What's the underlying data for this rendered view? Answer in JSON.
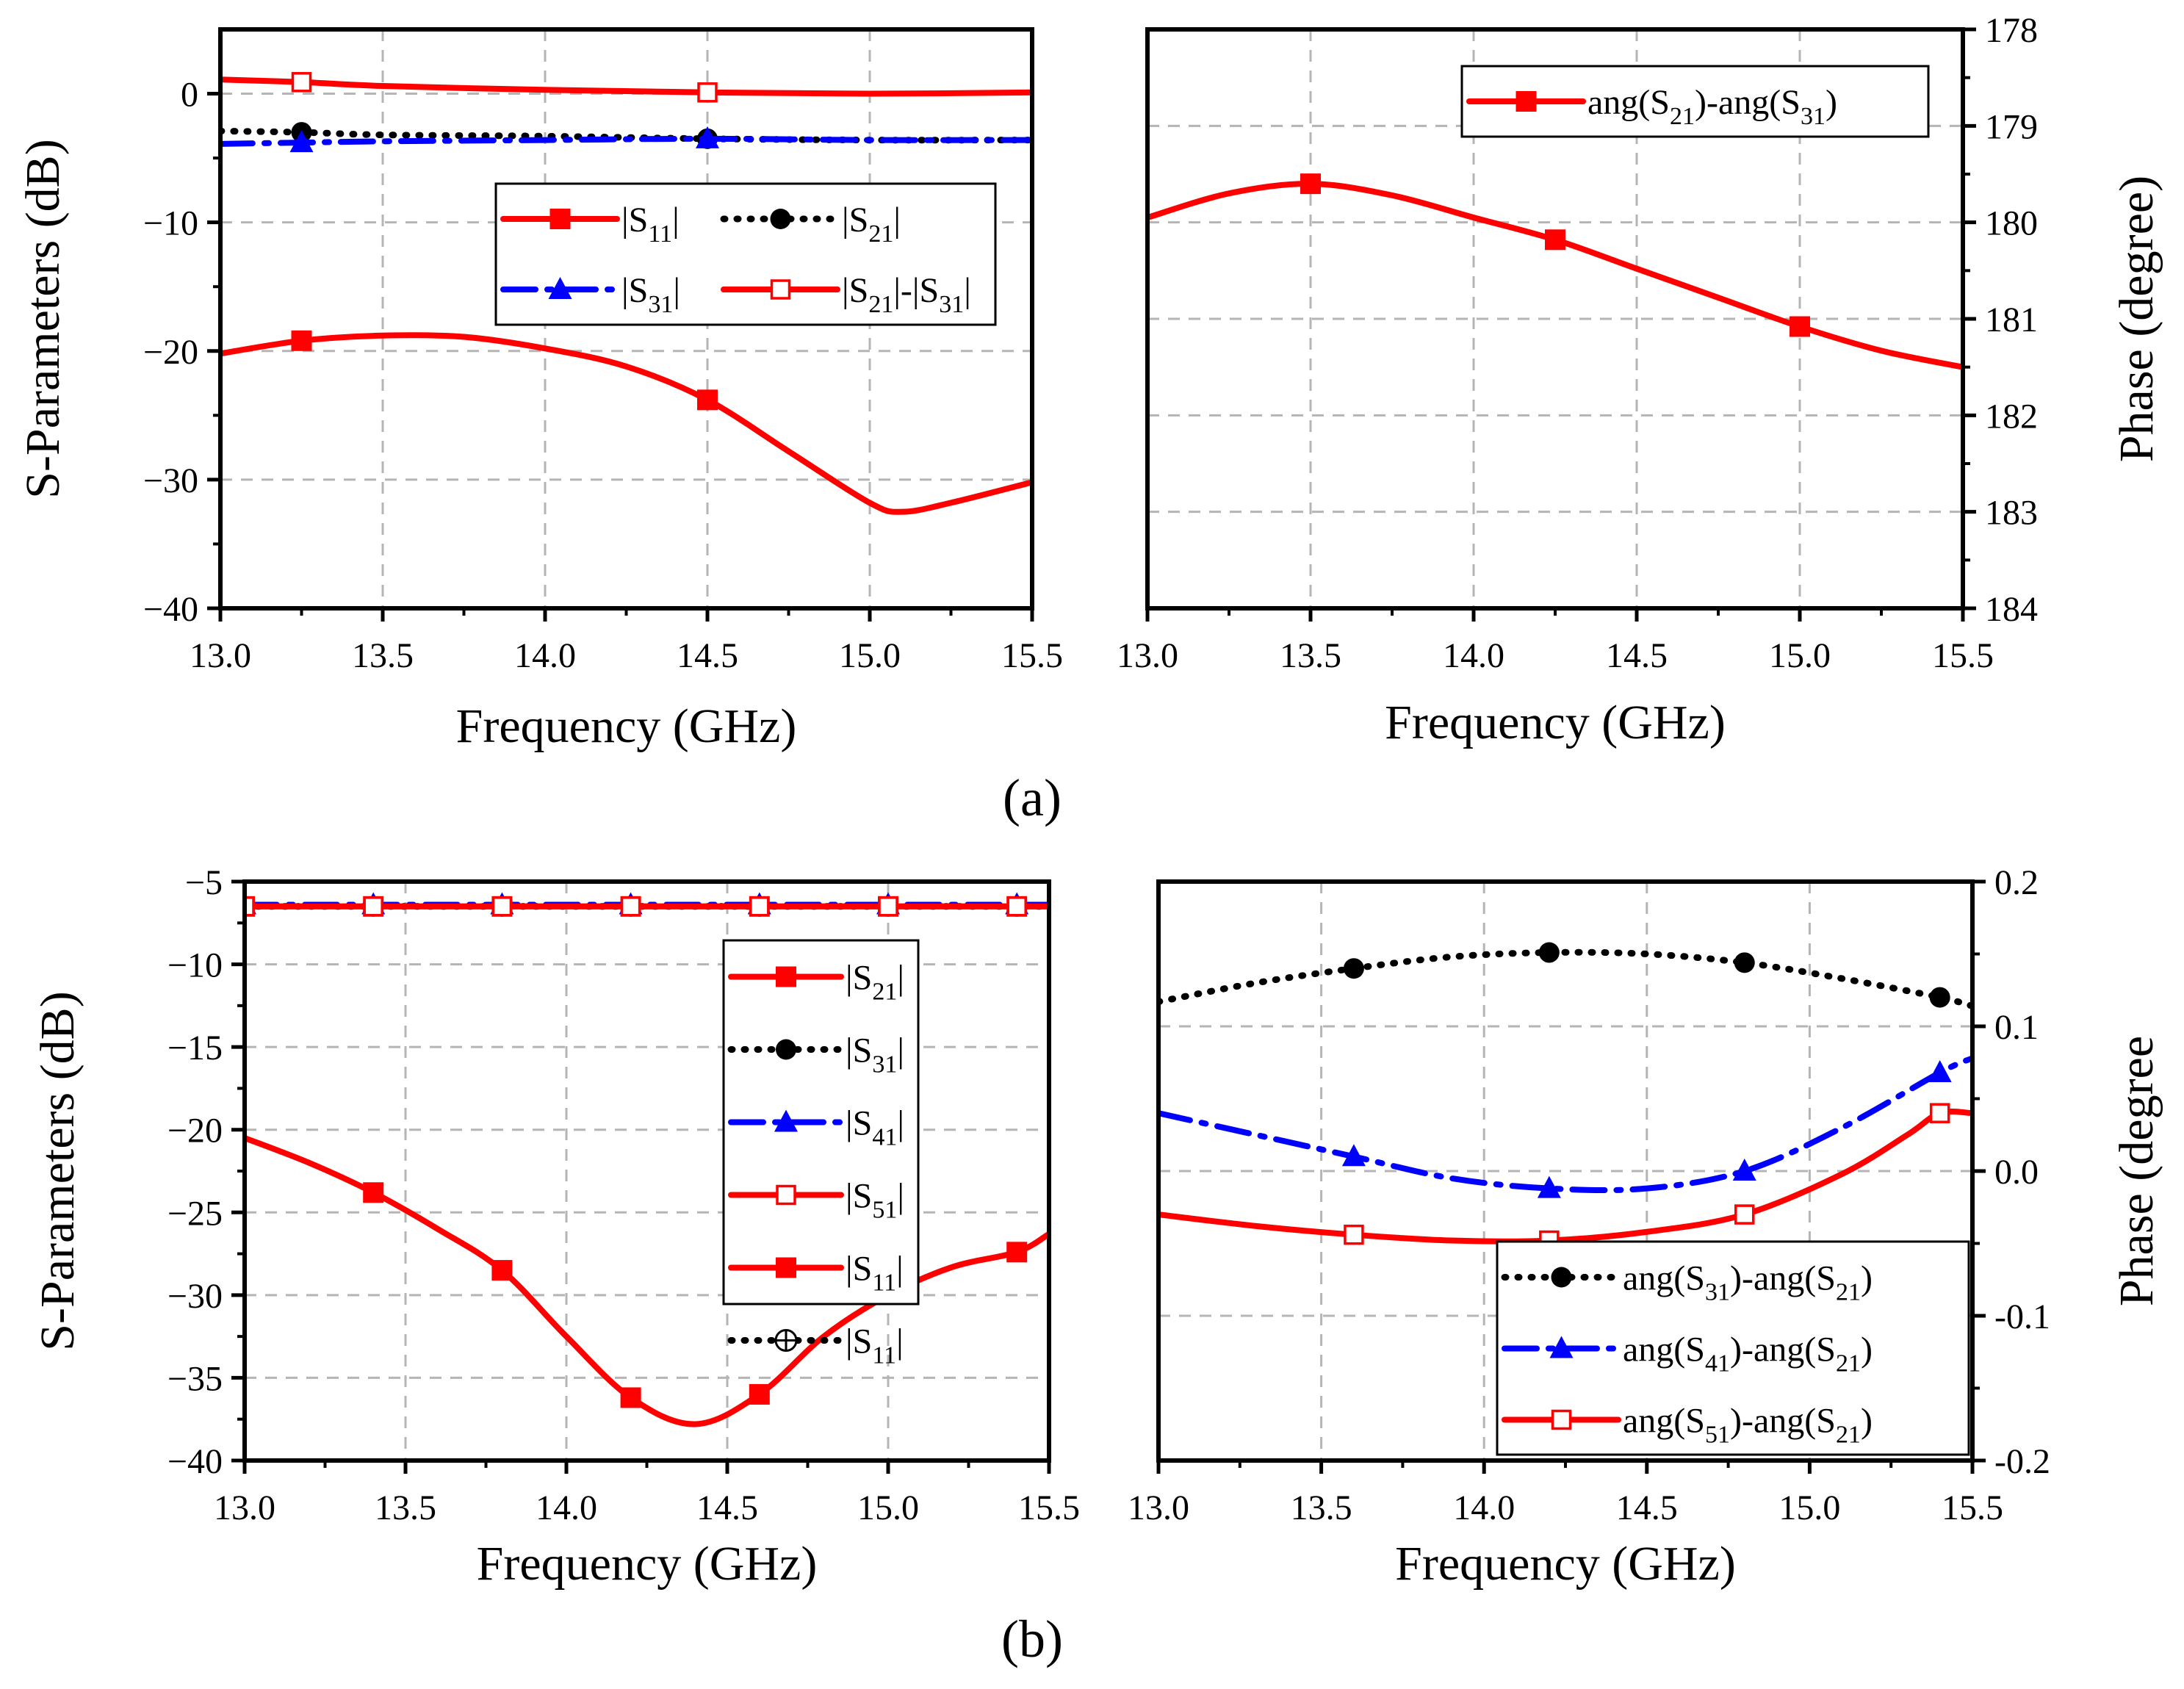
{
  "captions": {
    "a": "(a)",
    "b": "(b)"
  },
  "colors": {
    "red": "#ff0000",
    "black": "#000000",
    "blue": "#0000ff"
  },
  "chart_data": [
    {
      "id": "a-left",
      "type": "line",
      "xlabel": "Frequency (GHz)",
      "ylabel": "S-Parameters (dB)",
      "xlim": [
        13.0,
        15.5
      ],
      "ylim": [
        -40,
        5
      ],
      "xticks": [
        13.0,
        13.5,
        14.0,
        14.5,
        15.0,
        15.5
      ],
      "yticks": [
        0,
        -10,
        -20,
        -30,
        -40
      ],
      "xtick_labels": [
        "13.0",
        "13.5",
        "14.0",
        "14.5",
        "15.0",
        "15.5"
      ],
      "ytick_labels": [
        "0",
        "−10",
        "−20",
        "−30",
        "−40"
      ],
      "legend": {
        "placement": "center",
        "columns": 2
      },
      "series": [
        {
          "name": "|S11|",
          "label_main": "|S",
          "label_sub": "11",
          "label_tail": "|",
          "style": "solid",
          "color": "#ff0000",
          "marker": "square-filled",
          "x": [
            13.0,
            13.25,
            13.5,
            13.75,
            14.0,
            14.25,
            14.5,
            14.75,
            15.0,
            15.1,
            15.25,
            15.5
          ],
          "y": [
            -20.2,
            -19.2,
            -18.8,
            -18.9,
            -19.8,
            -21.2,
            -23.8,
            -27.8,
            -31.8,
            -32.5,
            -31.8,
            -30.2
          ],
          "marker_x": [
            13.25,
            14.5
          ]
        },
        {
          "name": "|S21|",
          "label_main": "|S",
          "label_sub": "21",
          "label_tail": "|",
          "style": "dotted",
          "color": "#000000",
          "marker": "circle-filled",
          "x": [
            13.0,
            13.25,
            13.5,
            14.0,
            14.5,
            15.0,
            15.5
          ],
          "y": [
            -2.9,
            -3.0,
            -3.2,
            -3.3,
            -3.5,
            -3.6,
            -3.6
          ],
          "marker_x": [
            13.25,
            14.5
          ]
        },
        {
          "name": "|S31|",
          "label_main": "|S",
          "label_sub": "31",
          "label_tail": "|",
          "style": "dashdot",
          "color": "#0000ff",
          "marker": "triangle-filled",
          "x": [
            13.0,
            13.25,
            13.5,
            14.0,
            14.5,
            15.0,
            15.5
          ],
          "y": [
            -3.9,
            -3.8,
            -3.7,
            -3.6,
            -3.5,
            -3.6,
            -3.6
          ],
          "marker_x": [
            13.25,
            14.5
          ]
        },
        {
          "name": "|S21|-|S31|",
          "label_main": "|S",
          "label_sub": "21",
          "label_tail": "|-|S",
          "label_sub2": "31",
          "label_tail2": "|",
          "style": "solid",
          "color": "#ff0000",
          "marker": "square-open",
          "x": [
            13.0,
            13.25,
            13.5,
            14.0,
            14.5,
            15.0,
            15.5
          ],
          "y": [
            1.1,
            0.9,
            0.6,
            0.3,
            0.1,
            0.0,
            0.1
          ],
          "marker_x": [
            13.25,
            14.5
          ]
        }
      ]
    },
    {
      "id": "a-right",
      "type": "line",
      "xlabel": "Frequency (GHz)",
      "ylabel": "Phase (degree)",
      "xlim": [
        13.0,
        15.5
      ],
      "ylim": [
        178,
        184
      ],
      "y_inverted": true,
      "y_axis_side": "right",
      "xticks": [
        13.0,
        13.5,
        14.0,
        14.5,
        15.0,
        15.5
      ],
      "yticks": [
        178,
        179,
        180,
        181,
        182,
        183,
        184
      ],
      "xtick_labels": [
        "13.0",
        "13.5",
        "14.0",
        "14.5",
        "15.0",
        "15.5"
      ],
      "ytick_labels": [
        "178",
        "179",
        "180",
        "181",
        "182",
        "183",
        "184"
      ],
      "legend": {
        "placement": "top-right",
        "columns": 1
      },
      "series": [
        {
          "name": "ang(S21)-ang(S31)",
          "label_main": "ang(S",
          "label_sub": "21",
          "label_tail": ")-ang(S",
          "label_sub2": "31",
          "label_tail2": ")",
          "style": "solid",
          "color": "#ff0000",
          "marker": "square-filled",
          "x": [
            13.0,
            13.25,
            13.5,
            13.75,
            14.0,
            14.25,
            14.5,
            14.75,
            15.0,
            15.25,
            15.5
          ],
          "y": [
            179.95,
            179.7,
            179.6,
            179.72,
            179.95,
            180.18,
            180.48,
            180.78,
            181.08,
            181.33,
            181.5
          ],
          "marker_x": [
            13.5,
            14.25,
            15.0
          ]
        }
      ]
    },
    {
      "id": "b-left",
      "type": "line",
      "xlabel": "Frequency (GHz)",
      "ylabel": "S-Parameters (dB)",
      "xlim": [
        13.0,
        15.5
      ],
      "ylim": [
        -40,
        -5
      ],
      "xticks": [
        13.0,
        13.5,
        14.0,
        14.5,
        15.0,
        15.5
      ],
      "yticks": [
        -5,
        -10,
        -15,
        -20,
        -25,
        -30,
        -35,
        -40
      ],
      "xtick_labels": [
        "13.0",
        "13.5",
        "14.0",
        "14.5",
        "15.0",
        "15.5"
      ],
      "ytick_labels": [
        "−5",
        "−10",
        "−15",
        "−20",
        "−25",
        "−30",
        "−35",
        "−40"
      ],
      "legend": {
        "placement": "upper-center",
        "columns": 1
      },
      "series": [
        {
          "name": "|S21|",
          "label_main": "|S",
          "label_sub": "21",
          "label_tail": "|",
          "style": "solid",
          "color": "#ff0000",
          "marker": "square-filled",
          "x": [
            13.0,
            15.5
          ],
          "y": [
            -6.5,
            -6.5
          ],
          "marker_x": [
            13.0,
            13.4,
            13.8,
            14.2,
            14.6,
            15.0,
            15.4
          ]
        },
        {
          "name": "|S31|",
          "label_main": "|S",
          "label_sub": "31",
          "label_tail": "|",
          "style": "dotted",
          "color": "#000000",
          "marker": "circle-filled",
          "x": [
            13.0,
            15.5
          ],
          "y": [
            -6.5,
            -6.5
          ],
          "marker_x": [
            13.0,
            13.4,
            13.8,
            14.2,
            14.6,
            15.0,
            15.4
          ]
        },
        {
          "name": "|S41|",
          "label_main": "|S",
          "label_sub": "41",
          "label_tail": "|",
          "style": "dashdot",
          "color": "#0000ff",
          "marker": "triangle-filled",
          "x": [
            13.0,
            15.5
          ],
          "y": [
            -6.4,
            -6.4
          ],
          "marker_x": [
            13.0,
            13.4,
            13.8,
            14.2,
            14.6,
            15.0,
            15.4
          ]
        },
        {
          "name": "|S51|",
          "label_main": "|S",
          "label_sub": "51",
          "label_tail": "|",
          "style": "solid",
          "color": "#ff0000",
          "marker": "square-open",
          "x": [
            13.0,
            15.5
          ],
          "y": [
            -6.5,
            -6.5
          ],
          "marker_x": [
            13.0,
            13.4,
            13.8,
            14.2,
            14.6,
            15.0,
            15.4
          ]
        },
        {
          "name": "|S11|",
          "label_main": "|S",
          "label_sub": "11",
          "label_tail": "|",
          "style": "solid",
          "color": "#ff0000",
          "marker": "square-filled",
          "x": [
            13.0,
            13.2,
            13.4,
            13.6,
            13.8,
            14.0,
            14.2,
            14.4,
            14.6,
            14.8,
            15.0,
            15.2,
            15.4,
            15.5
          ],
          "y": [
            -20.5,
            -22.0,
            -23.8,
            -26.0,
            -28.5,
            -32.5,
            -36.2,
            -37.8,
            -36.0,
            -32.5,
            -30.0,
            -28.3,
            -27.4,
            -26.3
          ],
          "marker_x": [
            13.4,
            13.8,
            14.2,
            14.6,
            15.4
          ]
        },
        {
          "name": "|S11| (legend)",
          "label_main": "|S",
          "label_sub": "11",
          "label_tail": "|",
          "style": "dotted",
          "color": "#000000",
          "marker": "circle-open-cross",
          "legend_only": true,
          "x": [],
          "y": [],
          "marker_x": []
        }
      ]
    },
    {
      "id": "b-right",
      "type": "line",
      "xlabel": "Frequency (GHz)",
      "ylabel": "Phase (degree",
      "xlim": [
        13.0,
        15.5
      ],
      "ylim": [
        -0.2,
        0.2
      ],
      "y_axis_side": "right",
      "xticks": [
        13.0,
        13.5,
        14.0,
        14.5,
        15.0,
        15.5
      ],
      "yticks": [
        0.2,
        0.1,
        0.0,
        -0.1,
        -0.2
      ],
      "xtick_labels": [
        "13.0",
        "13.5",
        "14.0",
        "14.5",
        "15.0",
        "15.5"
      ],
      "ytick_labels": [
        "0.2",
        "0.1",
        "0.0",
        "-0.1",
        "-0.2"
      ],
      "legend": {
        "placement": "bottom-right",
        "columns": 1
      },
      "series": [
        {
          "name": "ang(S31)-ang(S21)",
          "label_main": "ang(S",
          "label_sub": "31",
          "label_tail": ")-ang(S",
          "label_sub2": "21",
          "label_tail2": ")",
          "style": "dotted",
          "color": "#000000",
          "marker": "circle-filled",
          "x": [
            13.0,
            13.3,
            13.6,
            13.9,
            14.2,
            14.5,
            14.8,
            15.1,
            15.4,
            15.5
          ],
          "y": [
            0.117,
            0.13,
            0.14,
            0.148,
            0.151,
            0.15,
            0.144,
            0.133,
            0.12,
            0.114
          ],
          "marker_x": [
            13.6,
            14.2,
            14.8,
            15.4
          ]
        },
        {
          "name": "ang(S41)-ang(S21)",
          "label_main": "ang(S",
          "label_sub": "41",
          "label_tail": ")-ang(S",
          "label_sub2": "21",
          "label_tail2": ")",
          "style": "dashdot",
          "color": "#0000ff",
          "marker": "triangle-filled",
          "x": [
            13.0,
            13.3,
            13.6,
            13.9,
            14.2,
            14.5,
            14.8,
            15.1,
            15.4,
            15.5
          ],
          "y": [
            0.04,
            0.025,
            0.01,
            -0.005,
            -0.012,
            -0.012,
            0.0,
            0.03,
            0.068,
            0.078
          ],
          "marker_x": [
            13.6,
            14.2,
            14.8,
            15.4
          ]
        },
        {
          "name": "ang(S51)-ang(S21)",
          "label_main": "ang(S",
          "label_sub": "51",
          "label_tail": ")-ang(S",
          "label_sub2": "21",
          "label_tail2": ")",
          "style": "solid",
          "color": "#ff0000",
          "marker": "square-open",
          "x": [
            13.0,
            13.3,
            13.6,
            13.9,
            14.2,
            14.5,
            14.8,
            15.1,
            15.3,
            15.4,
            15.5
          ],
          "y": [
            -0.03,
            -0.038,
            -0.044,
            -0.048,
            -0.048,
            -0.042,
            -0.03,
            -0.002,
            0.025,
            0.04,
            0.04
          ],
          "marker_x": [
            13.6,
            14.2,
            14.8,
            15.4
          ]
        }
      ]
    }
  ]
}
